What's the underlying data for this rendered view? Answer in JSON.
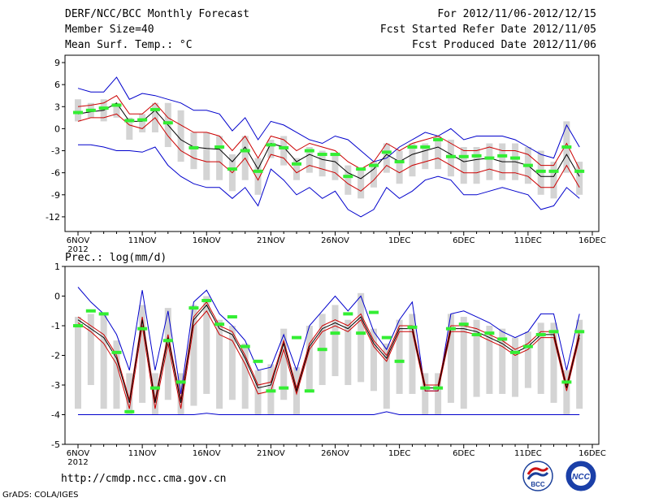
{
  "header": {
    "title": "DERF/NCC/BCC Monthly Forecast",
    "member_size": "Member Size=40",
    "variable": "Mean Surf. Temp.: °C",
    "period": "For 2012/11/06-2012/12/15",
    "fcst_started": "Fcst Started Refer Date 2012/11/05",
    "fcst_produced": "Fcst Produced Date 2012/11/06"
  },
  "footer": {
    "url": "http://cmdp.ncc.cma.gov.cn",
    "grads": "GrADS: COLA/IGES",
    "logo_left_text": "BCC",
    "logo_right_text": "NCC"
  },
  "colors": {
    "envelope": "#0000cc",
    "spread": "#cc0000",
    "mean": "#000000",
    "box": "#d4d4d4",
    "marker": "#33ee33"
  },
  "chart_data": [
    {
      "type": "line",
      "title": "Mean Surf. Temp.: °C",
      "ylim": [
        -14,
        10
      ],
      "yticks": [
        -12,
        -9,
        -6,
        -3,
        0,
        3,
        6,
        9
      ],
      "xticks": [
        {
          "day": 0,
          "label": "6NOV",
          "sub": "2012"
        },
        {
          "day": 5,
          "label": "11NOV"
        },
        {
          "day": 10,
          "label": "16NOV"
        },
        {
          "day": 15,
          "label": "21NOV"
        },
        {
          "day": 20,
          "label": "26NOV"
        },
        {
          "day": 25,
          "label": "1DEC"
        },
        {
          "day": 30,
          "label": "6DEC"
        },
        {
          "day": 35,
          "label": "11DEC"
        },
        {
          "day": 40,
          "label": "16DEC"
        }
      ],
      "x_days": [
        0,
        1,
        2,
        3,
        4,
        5,
        6,
        7,
        8,
        9,
        10,
        11,
        12,
        13,
        14,
        15,
        16,
        17,
        18,
        19,
        20,
        21,
        22,
        23,
        24,
        25,
        26,
        27,
        28,
        29,
        30,
        31,
        32,
        33,
        34,
        35,
        36,
        37,
        38,
        39
      ],
      "series": [
        {
          "name": "max",
          "color": "envelope",
          "values": [
            5.5,
            5,
            5,
            7,
            4,
            4.8,
            4.5,
            4,
            3.5,
            2.5,
            2.5,
            2,
            -0.3,
            1.5,
            -1.5,
            1,
            0.5,
            -0.5,
            -1.5,
            -2,
            -1,
            -1.5,
            -3,
            -4.5,
            -4,
            -2.5,
            -1.5,
            -0.5,
            -1,
            0,
            -1.5,
            -1,
            -1,
            -1,
            -1.5,
            -2.5,
            -3.5,
            -4,
            0.5,
            -2.5
          ]
        },
        {
          "name": "upper",
          "color": "spread",
          "values": [
            3,
            3.2,
            3.5,
            4.5,
            2,
            2,
            3.5,
            1.5,
            0.5,
            -0.5,
            -0.5,
            -1,
            -3,
            -1,
            -4,
            -1,
            -1.5,
            -3,
            -2,
            -2.5,
            -3,
            -4.5,
            -5.5,
            -4.5,
            -2,
            -3,
            -2,
            -1.5,
            -1,
            -2,
            -3,
            -3,
            -2.5,
            -3,
            -3,
            -3.5,
            -5,
            -5,
            -2,
            -5.5
          ]
        },
        {
          "name": "mean",
          "color": "mean",
          "values": [
            2,
            2.3,
            2.5,
            3.5,
            1,
            1,
            2.5,
            0.5,
            -1.5,
            -2.5,
            -2.7,
            -2.8,
            -4.5,
            -2.5,
            -5.5,
            -2,
            -2.5,
            -4.5,
            -3.5,
            -4.2,
            -4.5,
            -6,
            -6.8,
            -5.5,
            -3.5,
            -4.5,
            -3.5,
            -3,
            -2.5,
            -3.5,
            -4.5,
            -4.2,
            -4,
            -4.5,
            -4.5,
            -5,
            -6.5,
            -6.5,
            -3.5,
            -6.5
          ]
        },
        {
          "name": "lower",
          "color": "spread",
          "values": [
            1,
            1.5,
            1.5,
            2,
            0.5,
            0,
            1.5,
            -1,
            -3,
            -4,
            -4.5,
            -4.5,
            -6,
            -4,
            -7,
            -3.5,
            -4,
            -6,
            -5,
            -5.5,
            -6,
            -7.5,
            -8.5,
            -7,
            -5,
            -6,
            -5,
            -4.5,
            -4,
            -5,
            -6,
            -6,
            -5.5,
            -6,
            -6,
            -6.5,
            -8,
            -8,
            -5,
            -8
          ]
        },
        {
          "name": "min",
          "color": "envelope",
          "values": [
            -2.2,
            -2.2,
            -2.5,
            -3,
            -3,
            -3.2,
            -2.5,
            -5,
            -6.5,
            -7.5,
            -8,
            -8,
            -9.5,
            -8,
            -10.5,
            -5.5,
            -7,
            -9,
            -8,
            -9.5,
            -8.5,
            -11,
            -12,
            -11,
            -8,
            -9.5,
            -8.5,
            -7,
            -6.5,
            -7,
            -9,
            -9,
            -8.5,
            -8,
            -8.5,
            -9,
            -11,
            -10.5,
            -8,
            -9.5
          ]
        },
        {
          "name": "box_top",
          "color": "box",
          "values": [
            4,
            3.5,
            4,
            3.5,
            1.5,
            2,
            3.5,
            3.5,
            2.5,
            -0.5,
            -0.5,
            -1,
            -3.5,
            -1,
            -4,
            -1.5,
            -1,
            -4,
            -2.5,
            -3,
            -3.5,
            -5,
            -5.5,
            -4.5,
            -2,
            -3,
            -2,
            -2,
            -1,
            -1.5,
            -2.5,
            -2.5,
            -2,
            -2,
            -2,
            -2.5,
            -3,
            -4.5,
            1,
            -4.5
          ]
        },
        {
          "name": "box_bottom",
          "color": "box",
          "values": [
            1,
            1.5,
            1,
            1.5,
            -1.5,
            -0.5,
            -0.5,
            -2.5,
            -4.5,
            -5.5,
            -7,
            -7,
            -8.5,
            -7,
            -9,
            -4,
            -5,
            -7,
            -6,
            -6.5,
            -7,
            -9,
            -9.5,
            -8,
            -6,
            -7.5,
            -6.5,
            -5.5,
            -5.5,
            -6.5,
            -7.5,
            -7.5,
            -7,
            -7,
            -7,
            -7.5,
            -9,
            -9.5,
            -6,
            -9
          ]
        },
        {
          "name": "marker",
          "color": "marker",
          "values": [
            2.2,
            2.5,
            2.8,
            3.2,
            1.1,
            1.2,
            2.6,
            0.8,
            null,
            -2.6,
            null,
            -2.5,
            -5.5,
            -3,
            -5.8,
            -2.2,
            -2.6,
            -4.8,
            -3,
            -3.5,
            -3.5,
            -6.5,
            -5.5,
            -5,
            -3.2,
            -4.5,
            -2.5,
            -2.5,
            -1.5,
            -3.8,
            -3.8,
            -3.7,
            -4,
            -3.7,
            -4,
            -5,
            -5.8,
            -5.8,
            -2.5,
            -5.8
          ]
        }
      ]
    },
    {
      "type": "line",
      "title": "Prec.: log(mm/d)",
      "ylim": [
        -5,
        1
      ],
      "yticks": [
        -5,
        -4,
        -3,
        -2,
        -1,
        0,
        1
      ],
      "xticks": [
        {
          "day": 0,
          "label": "6NOV",
          "sub": "2012"
        },
        {
          "day": 5,
          "label": "11NOV"
        },
        {
          "day": 10,
          "label": "16NOV"
        },
        {
          "day": 15,
          "label": "21NOV"
        },
        {
          "day": 20,
          "label": "26NOV"
        },
        {
          "day": 25,
          "label": "1DEC"
        },
        {
          "day": 30,
          "label": "6DEC"
        },
        {
          "day": 35,
          "label": "11DEC"
        },
        {
          "day": 40,
          "label": "16DEC"
        }
      ],
      "x_days": [
        0,
        1,
        2,
        3,
        4,
        5,
        6,
        7,
        8,
        9,
        10,
        11,
        12,
        13,
        14,
        15,
        16,
        17,
        18,
        19,
        20,
        21,
        22,
        23,
        24,
        25,
        26,
        27,
        28,
        29,
        30,
        31,
        32,
        33,
        34,
        35,
        36,
        37,
        38,
        39
      ],
      "series": [
        {
          "name": "max",
          "color": "envelope",
          "values": [
            0.3,
            -0.2,
            -0.6,
            -1.3,
            -2.5,
            0.2,
            -2.5,
            -0.5,
            -3.3,
            -0.2,
            0.2,
            -0.6,
            -1,
            -1.5,
            -2.5,
            -2.4,
            -1.3,
            -2.5,
            -1,
            -0.5,
            0,
            -0.5,
            0,
            -1.2,
            -1.8,
            -0.8,
            -0.2,
            -3.2,
            -3.2,
            -0.6,
            -0.5,
            -0.7,
            -0.9,
            -1.2,
            -1.4,
            -1.2,
            -0.6,
            -0.6,
            -2.5,
            -0.6
          ]
        },
        {
          "name": "upper",
          "color": "spread",
          "values": [
            -0.7,
            -1,
            -1.3,
            -2,
            -3.5,
            -0.7,
            -3.5,
            -1.3,
            -3.5,
            -0.7,
            -0.2,
            -1,
            -1.2,
            -2,
            -3,
            -2.9,
            -1.5,
            -3.1,
            -1.6,
            -1,
            -0.8,
            -1,
            -0.6,
            -1.5,
            -2,
            -1,
            -1,
            -3,
            -3,
            -1,
            -1,
            -1.1,
            -1.3,
            -1.5,
            -1.8,
            -1.6,
            -1.2,
            -1.2,
            -3,
            -1.2
          ]
        },
        {
          "name": "mean",
          "color": "mean",
          "values": [
            -0.8,
            -1.1,
            -1.4,
            -2.1,
            -3.6,
            -0.8,
            -3.6,
            -1.4,
            -3.6,
            -0.8,
            -0.3,
            -1.1,
            -1.3,
            -2.1,
            -3.1,
            -3,
            -1.6,
            -3.2,
            -1.7,
            -1.1,
            -0.9,
            -1.1,
            -0.7,
            -1.6,
            -2.1,
            -1.1,
            -1.1,
            -3.1,
            -3.1,
            -1.1,
            -1.1,
            -1.2,
            -1.4,
            -1.6,
            -1.9,
            -1.7,
            -1.3,
            -1.3,
            -3.1,
            -1.3
          ]
        },
        {
          "name": "lower",
          "color": "spread",
          "values": [
            -0.9,
            -1.2,
            -1.6,
            -2.3,
            -3.8,
            -1,
            -3.8,
            -1.6,
            -3.8,
            -1,
            -0.5,
            -1.3,
            -1.5,
            -2.3,
            -3.3,
            -3.2,
            -1.8,
            -3.3,
            -1.8,
            -1.2,
            -1,
            -1.2,
            -0.8,
            -1.7,
            -2.2,
            -1.2,
            -1.2,
            -3.2,
            -3.2,
            -1.2,
            -1.2,
            -1.3,
            -1.5,
            -1.7,
            -2,
            -1.8,
            -1.4,
            -1.4,
            -3.2,
            -1.4
          ]
        },
        {
          "name": "min",
          "color": "envelope",
          "values": [
            -4,
            -4,
            -4,
            -4,
            -4,
            -4,
            -4,
            -4,
            -4,
            -4,
            -3.95,
            -4,
            -4,
            -4,
            -4,
            -4,
            -4,
            -4,
            -4,
            -4,
            -4,
            -4,
            -4,
            -4,
            -3.9,
            -4,
            -4,
            -4,
            -4,
            -4,
            -4,
            -4,
            -4,
            -4,
            -4,
            -4,
            -4,
            -4,
            -4,
            -4
          ]
        },
        {
          "name": "box_top",
          "color": "box",
          "values": [
            -0.7,
            -0.6,
            -0.6,
            -1.5,
            -2.6,
            -0.3,
            -2.6,
            -0.4,
            -2.6,
            -0.3,
            0,
            -0.8,
            -1,
            -1.6,
            -2.5,
            -2.3,
            -1.1,
            -2.4,
            -1,
            -0.6,
            -0.3,
            -0.8,
            0.1,
            -1.1,
            -1.6,
            -0.8,
            -0.6,
            -2.6,
            -2.6,
            -0.6,
            -0.7,
            -0.8,
            -1,
            -1.1,
            -1.4,
            -1.2,
            -0.9,
            -0.9,
            -2.5,
            -0.8
          ]
        },
        {
          "name": "box_bottom",
          "color": "box",
          "values": [
            -3.8,
            -3,
            -3.8,
            -3.8,
            -4,
            -3.6,
            -4,
            -3.5,
            -4,
            -3.7,
            -3.3,
            -3.8,
            -3.5,
            -3.8,
            -4,
            -4,
            -3.5,
            -4,
            -3.2,
            -3,
            -2.7,
            -3,
            -2.9,
            -3.2,
            -3.8,
            -3.3,
            -3.3,
            -4,
            -4,
            -3.6,
            -3.8,
            -3.4,
            -3.3,
            -3.3,
            -3.4,
            -3.1,
            -3.3,
            -3.6,
            -4,
            -3.8
          ]
        },
        {
          "name": "marker",
          "color": "marker",
          "values": [
            -1,
            -0.5,
            -0.6,
            -1.9,
            -3.9,
            -1.1,
            -3.1,
            -1.5,
            -2.9,
            -0.4,
            -0.15,
            -0.95,
            -0.7,
            -1.7,
            -2.2,
            -3.2,
            -3.1,
            -1.4,
            -3.2,
            -1.8,
            -1.25,
            -0.6,
            -1.25,
            -0.55,
            -1.4,
            -2.2,
            -1.05,
            -3.1,
            -3.1,
            -1.1,
            -0.95,
            -1.3,
            -1.25,
            -1.45,
            -1.9,
            -1.7,
            -1.3,
            -1.2,
            -2.9,
            -1.2
          ]
        }
      ]
    }
  ]
}
